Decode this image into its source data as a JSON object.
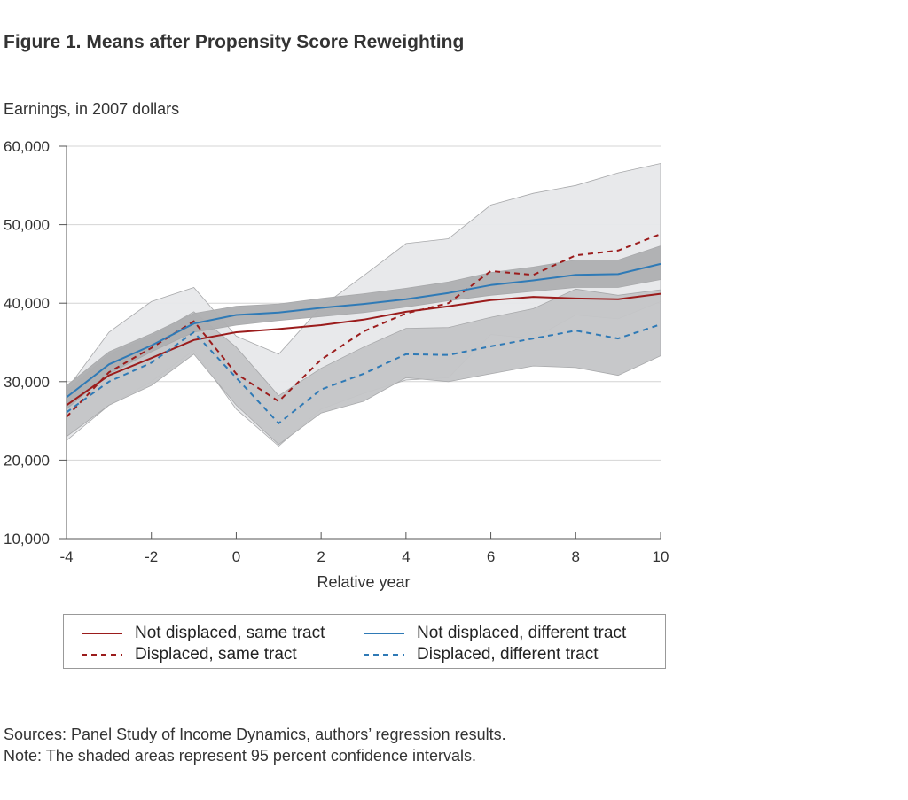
{
  "title": "Figure 1. Means after Propensity Score Reweighting",
  "notes": {
    "sources": "Sources: Panel Study of Income Dynamics, authors’ regression results.",
    "note": "Note: The shaded areas represent 95 percent confidence intervals."
  },
  "chart_data": {
    "type": "line",
    "ylabel": "Earnings, in 2007 dollars",
    "xlabel": "Relative year",
    "xlim": [
      -4,
      10
    ],
    "ylim": [
      10000,
      60000
    ],
    "xticks": [
      "-4",
      "-2",
      "0",
      "2",
      "4",
      "6",
      "8",
      "10"
    ],
    "yticks": [
      "10,000",
      "20,000",
      "30,000",
      "40,000",
      "50,000",
      "60,000"
    ],
    "grid": true,
    "legend_position": "bottom",
    "x": [
      -4,
      -3,
      -2,
      -1,
      0,
      1,
      2,
      3,
      4,
      5,
      6,
      7,
      8,
      9,
      10
    ],
    "series": [
      {
        "name": "Not displaced, same tract",
        "color": "#9b1c1c",
        "dash": "solid",
        "values": [
          27000,
          30800,
          33000,
          35300,
          36300,
          36700,
          37200,
          37900,
          38900,
          39600,
          40400,
          40800,
          40600,
          40500,
          41200
        ]
      },
      {
        "name": "Displaced, same tract",
        "color": "#9b1c1c",
        "dash": "dashed",
        "values": [
          25500,
          31200,
          34300,
          37700,
          31000,
          27500,
          32800,
          36400,
          38700,
          40000,
          44100,
          43600,
          46100,
          46700,
          48800
        ]
      },
      {
        "name": "Not displaced, different tract",
        "color": "#2f7ab6",
        "dash": "solid",
        "values": [
          28000,
          32200,
          34600,
          37400,
          38500,
          38800,
          39400,
          39900,
          40500,
          41300,
          42300,
          42900,
          43600,
          43700,
          45000
        ]
      },
      {
        "name": "Displaced, different tract",
        "color": "#2f7ab6",
        "dash": "dashed",
        "values": [
          26100,
          30000,
          32400,
          36300,
          30500,
          24700,
          29000,
          31000,
          33500,
          33400,
          34500,
          35500,
          36500,
          35500,
          37300
        ]
      }
    ],
    "confidence_bands": [
      {
        "series": "Displaced, same tract",
        "fill": "#e7e8ea",
        "lower": [
          22500,
          27000,
          30000,
          34000,
          26500,
          21800,
          26500,
          28500,
          30200,
          30500,
          36000,
          35500,
          38500,
          38000,
          40200
        ],
        "upper": [
          29000,
          36300,
          40200,
          42000,
          35800,
          33500,
          39500,
          43500,
          47600,
          48200,
          52500,
          54000,
          55000,
          56600,
          57800
        ]
      },
      {
        "series": "Displaced, different tract",
        "fill": "#c4c5c7",
        "lower": [
          23000,
          27000,
          29500,
          33500,
          27000,
          22000,
          26000,
          27500,
          30500,
          30000,
          31000,
          32000,
          31800,
          30800,
          33300
        ],
        "upper": [
          28800,
          33500,
          35800,
          38900,
          34400,
          28200,
          31700,
          34400,
          36800,
          36900,
          38200,
          39300,
          41800,
          41000,
          41700
        ]
      },
      {
        "series": "Not displaced, different tract",
        "fill": "#aeafb1",
        "lower": [
          26500,
          31000,
          33800,
          36300,
          37200,
          37800,
          38300,
          38800,
          39500,
          40300,
          41000,
          41500,
          42000,
          42000,
          43000
        ],
        "upper": [
          29500,
          33800,
          36100,
          38700,
          39600,
          39900,
          40600,
          41200,
          41900,
          42700,
          43900,
          44600,
          45500,
          45500,
          47300
        ]
      }
    ]
  }
}
